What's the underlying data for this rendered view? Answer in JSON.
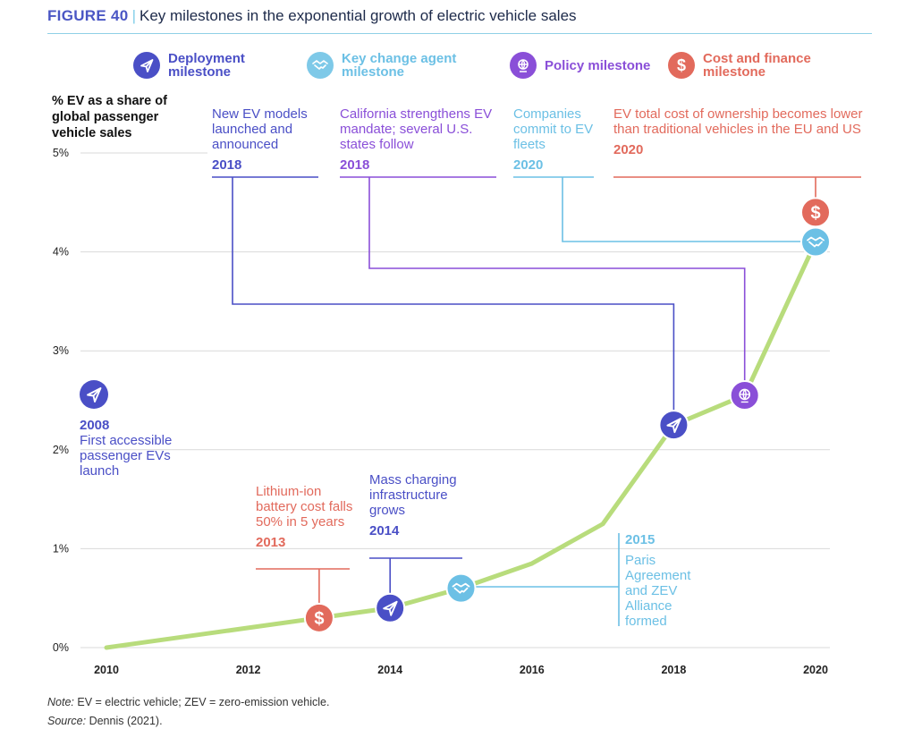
{
  "header": {
    "figure_label": "FIGURE 40",
    "separator": "|",
    "title": "Key milestones in the exponential growth of electric vehicle sales"
  },
  "legend": [
    {
      "label": "Deployment milestone",
      "icon": "paper-plane-icon",
      "color": "#4a4fc6"
    },
    {
      "label": "Key change agent milestone",
      "icon": "handshake-icon",
      "color": "#7ec9e8"
    },
    {
      "label": "Policy milestone",
      "icon": "globe-gavel-icon",
      "color": "#8a4fd8"
    },
    {
      "label": "Cost and finance milestone",
      "icon": "dollar-icon",
      "color": "#e26a5c"
    }
  ],
  "y_axis_title": "% EV as a share of global passenger vehicle sales",
  "colors": {
    "deployment": "#4a4fc6",
    "agent": "#6cc0e5",
    "policy": "#8a4fd8",
    "cost": "#e26a5c",
    "line": "#b8dc7c",
    "grid": "#d9d9d9"
  },
  "annotations": {
    "a2008": {
      "year": "2008",
      "text": "First accessible passenger EVs launch"
    },
    "a2013": {
      "year": "2013",
      "text": "Lithium-ion battery cost falls 50% in 5 years"
    },
    "a2014": {
      "year": "2014",
      "text": "Mass charging infrastructure grows"
    },
    "a2015": {
      "year": "2015",
      "text": "Paris Agreement and ZEV Alliance formed"
    },
    "a2018d": {
      "year": "2018",
      "text": "New EV models launched and announced"
    },
    "a2018p": {
      "year": "2018",
      "text": "California strengthens EV mandate; several U.S. states follow"
    },
    "a2020a": {
      "year": "2020",
      "text": "Companies commit to EV fleets"
    },
    "a2020c": {
      "year": "2020",
      "text": "EV total cost of ownership becomes lower than traditional vehicles in the EU and US"
    }
  },
  "chart_data": {
    "type": "line",
    "title": "Key milestones in the exponential growth of electric vehicle sales",
    "xlabel": "",
    "ylabel": "% EV as a share of global passenger vehicle sales",
    "x": [
      2010,
      2011,
      2012,
      2013,
      2014,
      2015,
      2016,
      2017,
      2018,
      2019,
      2020
    ],
    "series": [
      {
        "name": "EV share of global passenger vehicle sales",
        "values": [
          0.0,
          0.1,
          0.2,
          0.3,
          0.4,
          0.6,
          0.85,
          1.25,
          2.25,
          2.55,
          4.1
        ]
      }
    ],
    "xlim": [
      2010,
      2020
    ],
    "ylim": [
      0,
      5
    ],
    "x_ticks": [
      {
        "value": 2010,
        "label": "2010"
      },
      {
        "value": 2012,
        "label": "2012"
      },
      {
        "value": 2014,
        "label": "2014"
      },
      {
        "value": 2016,
        "label": "2016"
      },
      {
        "value": 2018,
        "label": "2018"
      },
      {
        "value": 2020,
        "label": "2020"
      }
    ],
    "y_ticks": [
      {
        "value": 0,
        "label": "0%"
      },
      {
        "value": 1,
        "label": "1%"
      },
      {
        "value": 2,
        "label": "2%"
      },
      {
        "value": 3,
        "label": "3%"
      },
      {
        "value": 4,
        "label": "4%"
      },
      {
        "value": 5,
        "label": "5%"
      }
    ],
    "grid": true,
    "markers": [
      {
        "x": 2013,
        "y": 0.3,
        "type": "cost"
      },
      {
        "x": 2014,
        "y": 0.4,
        "type": "deployment"
      },
      {
        "x": 2015,
        "y": 0.6,
        "type": "agent"
      },
      {
        "x": 2018,
        "y": 2.25,
        "type": "deployment"
      },
      {
        "x": 2019,
        "y": 2.55,
        "type": "policy"
      },
      {
        "x": 2020,
        "y": 4.1,
        "type": "agent"
      },
      {
        "x": 2020,
        "y": 4.4,
        "type": "cost"
      }
    ]
  },
  "footer": {
    "note_label": "Note:",
    "note_text": "EV = electric vehicle; ZEV = zero-emission vehicle.",
    "source_label": "Source:",
    "source_text": "Dennis (2021)."
  }
}
